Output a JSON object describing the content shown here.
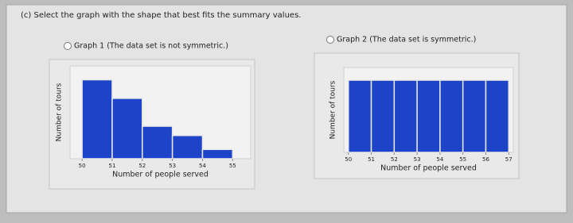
{
  "question": "(c) Select the graph with the shape that best fits the summary values.",
  "chart_data": [
    {
      "type": "histogram",
      "title": "Graph 1 (The data set is not symmetric.)",
      "bins": [
        50,
        51,
        52,
        53,
        54,
        55
      ],
      "values": [
        8.5,
        6.5,
        3.5,
        2.5,
        1
      ],
      "color": "#1d44c8",
      "ylim": [
        0,
        10
      ],
      "xlim": [
        49.6,
        55.6
      ],
      "xticks": [
        50,
        51,
        52,
        53,
        54,
        55
      ],
      "xlabel": "Number of people served",
      "ylabel": "Number of tours"
    },
    {
      "type": "histogram",
      "title": "Graph 2 (The data set is symmetric.)",
      "bins": [
        50,
        51,
        52,
        53,
        54,
        55,
        56,
        57
      ],
      "values": [
        8.5,
        8.5,
        8.5,
        8.5,
        8.5,
        8.5,
        8.5
      ],
      "color": "#1d44c8",
      "ylim": [
        0,
        10
      ],
      "xlim": [
        49.8,
        57.2
      ],
      "xticks": [
        50,
        51,
        52,
        53,
        54,
        55,
        56,
        57
      ],
      "xlabel": "Number of people served",
      "ylabel": "Number of tours"
    }
  ]
}
